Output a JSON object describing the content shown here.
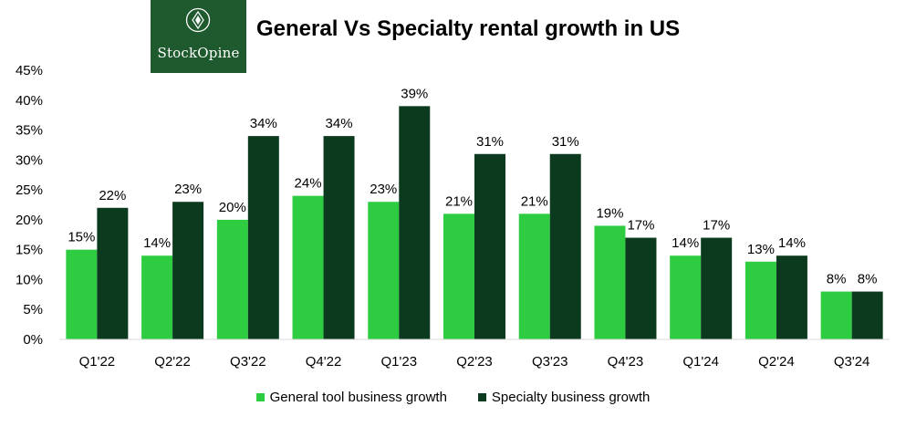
{
  "logo": {
    "text": "StockOpine"
  },
  "colors": {
    "general": "#2ecc40",
    "specialty": "#0b3a1e",
    "logo_bg": "#1e5a2e"
  },
  "chart_data": {
    "type": "bar",
    "title": "General Vs Specialty rental growth in US",
    "categories": [
      "Q1'22",
      "Q2'22",
      "Q3'22",
      "Q4'22",
      "Q1'23",
      "Q2'23",
      "Q3'23",
      "Q4'23",
      "Q1'24",
      "Q2'24",
      "Q3'24"
    ],
    "series": [
      {
        "name": "General tool business growth",
        "values": [
          15,
          14,
          20,
          24,
          23,
          21,
          21,
          19,
          14,
          13,
          8
        ]
      },
      {
        "name": "Specialty business growth",
        "values": [
          22,
          23,
          34,
          34,
          39,
          31,
          31,
          17,
          17,
          14,
          8
        ]
      }
    ],
    "ylim": [
      0,
      45
    ],
    "yticks": [
      "0%",
      "5%",
      "10%",
      "15%",
      "20%",
      "25%",
      "30%",
      "35%",
      "40%",
      "45%"
    ],
    "grid": false,
    "legend_position": "bottom",
    "value_suffix": "%"
  }
}
